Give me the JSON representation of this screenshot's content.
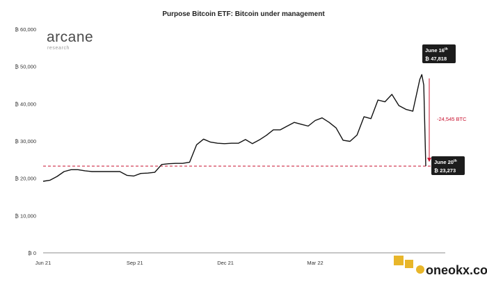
{
  "chart_data": {
    "type": "line",
    "title": "Purpose Bitcoin ETF: Bitcoin under management",
    "xlabel": "",
    "ylabel": "",
    "ylim": [
      0,
      60000
    ],
    "y_ticks": [
      "₿ 0",
      "₿ 10,000",
      "₿ 20,000",
      "₿ 30,000",
      "₿ 40,000",
      "₿ 50,000",
      "₿ 60,000"
    ],
    "x_ticks": [
      "Jun 21",
      "Sep 21",
      "Dec 21",
      "Mar 22"
    ],
    "grid": false,
    "series": [
      {
        "color": "#111111",
        "x": [
          "2021-06-01",
          "2021-06-08",
          "2021-06-15",
          "2021-06-22",
          "2021-06-29",
          "2021-07-06",
          "2021-07-13",
          "2021-07-20",
          "2021-07-27",
          "2021-08-03",
          "2021-08-10",
          "2021-08-17",
          "2021-08-24",
          "2021-08-31",
          "2021-09-07",
          "2021-09-14",
          "2021-09-21",
          "2021-09-28",
          "2021-10-05",
          "2021-10-12",
          "2021-10-19",
          "2021-10-26",
          "2021-11-02",
          "2021-11-09",
          "2021-11-16",
          "2021-11-23",
          "2021-11-30",
          "2021-12-07",
          "2021-12-14",
          "2021-12-21",
          "2021-12-28",
          "2022-01-04",
          "2022-01-11",
          "2022-01-18",
          "2022-01-25",
          "2022-02-01",
          "2022-02-08",
          "2022-02-15",
          "2022-02-22",
          "2022-03-01",
          "2022-03-08",
          "2022-03-15",
          "2022-03-22",
          "2022-03-29",
          "2022-04-05",
          "2022-04-12",
          "2022-04-19",
          "2022-04-26",
          "2022-05-03",
          "2022-05-10",
          "2022-05-17",
          "2022-05-24",
          "2022-05-31",
          "2022-06-07",
          "2022-06-14",
          "2022-06-16",
          "2022-06-18",
          "2022-06-20"
        ],
        "values": [
          19200,
          19500,
          20500,
          21800,
          22300,
          22300,
          22000,
          21800,
          21800,
          21800,
          21800,
          21800,
          20800,
          20600,
          21300,
          21400,
          21600,
          23700,
          23900,
          24000,
          24000,
          24300,
          29000,
          30500,
          29700,
          29400,
          29300,
          29400,
          29400,
          30400,
          29300,
          30300,
          31500,
          33000,
          33000,
          34000,
          35000,
          34500,
          34000,
          35500,
          36200,
          35000,
          33500,
          30200,
          29900,
          31600,
          36500,
          36000,
          41000,
          40500,
          42500,
          39500,
          38500,
          38000,
          46500,
          47818,
          45000,
          23273
        ]
      }
    ],
    "reference_line": {
      "value": 23273,
      "color": "#c8102e",
      "style": "dashed"
    },
    "annotations": {
      "peak_date": "June 16",
      "peak_sup": "th",
      "peak_value": "₿ 47,818",
      "trough_date": "June 20",
      "trough_sup": "th",
      "trough_value": "₿ 23,273",
      "drop_label": "-24,545 BTC"
    }
  },
  "brand": {
    "name": "arcane",
    "sub": "research"
  },
  "watermark": {
    "text": "oneokx.com"
  }
}
